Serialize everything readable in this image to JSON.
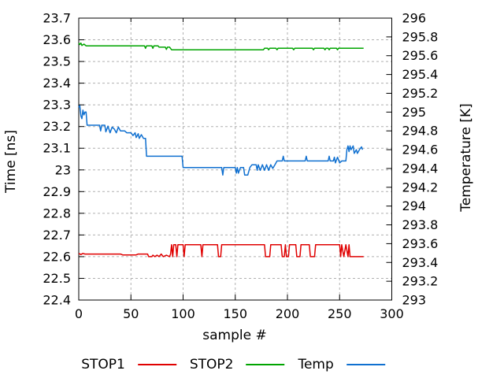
{
  "figure": {
    "background": "#ffffff",
    "border_color": "#000000",
    "grid_color": "#b0b0b0",
    "text_color": "#000000"
  },
  "chart_data": {
    "type": "line",
    "title": "",
    "grid": true,
    "legend_position": "bottom-center",
    "x_axis": {
      "label": "sample #",
      "min": 0,
      "max": 300,
      "tick_step": 50,
      "ticks": [
        "0",
        "50",
        "100",
        "150",
        "200",
        "250",
        "300"
      ]
    },
    "y_axis_left": {
      "label": "Time [ns]",
      "min": 22.4,
      "max": 23.7,
      "tick_step": 0.1,
      "ticks": [
        "23.7",
        "23.6",
        "23.5",
        "23.4",
        "23.3",
        "23.2",
        "23.1",
        "23",
        "22.9",
        "22.8",
        "22.7",
        "22.6",
        "22.5",
        "22.4"
      ]
    },
    "y_axis_right": {
      "label": "Temperature [K]",
      "min": 293,
      "max": 296,
      "tick_step": 0.2,
      "ticks": [
        "296",
        "295.8",
        "295.6",
        "295.4",
        "295.2",
        "295",
        "294.8",
        "294.6",
        "294.4",
        "294.2",
        "294",
        "293.8",
        "293.6",
        "293.4",
        "293.2",
        "293"
      ]
    },
    "series": [
      {
        "name": "STOP1",
        "color": "#e00000",
        "axis": "left",
        "points": [
          [
            0,
            22.615
          ],
          [
            2,
            22.61
          ],
          [
            4,
            22.615
          ],
          [
            6,
            22.612
          ],
          [
            40,
            22.612
          ],
          [
            42,
            22.608
          ],
          [
            55,
            22.608
          ],
          [
            57,
            22.612
          ],
          [
            66,
            22.612
          ],
          [
            67,
            22.6
          ],
          [
            70,
            22.6
          ],
          [
            71,
            22.607
          ],
          [
            73,
            22.6
          ],
          [
            75,
            22.607
          ],
          [
            77,
            22.6
          ],
          [
            79,
            22.612
          ],
          [
            81,
            22.6
          ],
          [
            84,
            22.607
          ],
          [
            87,
            22.6
          ],
          [
            88,
            22.612
          ],
          [
            89,
            22.655
          ],
          [
            90,
            22.6
          ],
          [
            91,
            22.655
          ],
          [
            93,
            22.655
          ],
          [
            94,
            22.6
          ],
          [
            95,
            22.655
          ],
          [
            100,
            22.655
          ],
          [
            101,
            22.6
          ],
          [
            102,
            22.655
          ],
          [
            117,
            22.655
          ],
          [
            118,
            22.6
          ],
          [
            119,
            22.655
          ],
          [
            133,
            22.655
          ],
          [
            134,
            22.6
          ],
          [
            136,
            22.6
          ],
          [
            137,
            22.655
          ],
          [
            178,
            22.655
          ],
          [
            179,
            22.6
          ],
          [
            183,
            22.6
          ],
          [
            184,
            22.655
          ],
          [
            194,
            22.655
          ],
          [
            195,
            22.6
          ],
          [
            197,
            22.6
          ],
          [
            198,
            22.655
          ],
          [
            199,
            22.6
          ],
          [
            201,
            22.6
          ],
          [
            202,
            22.655
          ],
          [
            208,
            22.655
          ],
          [
            209,
            22.6
          ],
          [
            212,
            22.6
          ],
          [
            213,
            22.655
          ],
          [
            221,
            22.655
          ],
          [
            222,
            22.6
          ],
          [
            226,
            22.6
          ],
          [
            227,
            22.655
          ],
          [
            250,
            22.655
          ],
          [
            251,
            22.6
          ],
          [
            252,
            22.655
          ],
          [
            254,
            22.6
          ],
          [
            256,
            22.655
          ],
          [
            258,
            22.6
          ],
          [
            259,
            22.655
          ],
          [
            260,
            22.6
          ],
          [
            273,
            22.6
          ]
        ]
      },
      {
        "name": "STOP2",
        "color": "#00a400",
        "axis": "left",
        "points": [
          [
            0,
            23.585
          ],
          [
            1,
            23.578
          ],
          [
            2,
            23.585
          ],
          [
            3,
            23.574
          ],
          [
            5,
            23.58
          ],
          [
            7,
            23.572
          ],
          [
            63,
            23.572
          ],
          [
            64,
            23.561
          ],
          [
            65,
            23.572
          ],
          [
            70,
            23.572
          ],
          [
            71,
            23.561
          ],
          [
            72,
            23.572
          ],
          [
            76,
            23.572
          ],
          [
            77,
            23.566
          ],
          [
            83,
            23.566
          ],
          [
            84,
            23.556
          ],
          [
            85,
            23.566
          ],
          [
            87,
            23.566
          ],
          [
            89,
            23.554
          ],
          [
            177,
            23.554
          ],
          [
            178,
            23.561
          ],
          [
            181,
            23.561
          ],
          [
            182,
            23.554
          ],
          [
            183,
            23.561
          ],
          [
            189,
            23.561
          ],
          [
            190,
            23.554
          ],
          [
            191,
            23.561
          ],
          [
            205,
            23.561
          ],
          [
            206,
            23.554
          ],
          [
            207,
            23.561
          ],
          [
            224,
            23.561
          ],
          [
            225,
            23.554
          ],
          [
            226,
            23.561
          ],
          [
            235,
            23.561
          ],
          [
            236,
            23.554
          ],
          [
            237,
            23.561
          ],
          [
            239,
            23.561
          ],
          [
            240,
            23.554
          ],
          [
            241,
            23.561
          ],
          [
            247,
            23.561
          ],
          [
            248,
            23.554
          ],
          [
            249,
            23.561
          ],
          [
            273,
            23.561
          ]
        ]
      },
      {
        "name": "Temp",
        "color": "#1070d0",
        "axis": "right",
        "points": [
          [
            0,
            295.05
          ],
          [
            1,
            295.07
          ],
          [
            2,
            294.96
          ],
          [
            3,
            294.93
          ],
          [
            4,
            295.02
          ],
          [
            5,
            294.97
          ],
          [
            6,
            295.0
          ],
          [
            7,
            295.0
          ],
          [
            8,
            294.86
          ],
          [
            20,
            294.86
          ],
          [
            21,
            294.8
          ],
          [
            22,
            294.86
          ],
          [
            25,
            294.86
          ],
          [
            26,
            294.79
          ],
          [
            28,
            294.85
          ],
          [
            30,
            294.78
          ],
          [
            32,
            294.84
          ],
          [
            34,
            294.82
          ],
          [
            36,
            294.78
          ],
          [
            38,
            294.84
          ],
          [
            40,
            294.8
          ],
          [
            44,
            294.8
          ],
          [
            46,
            294.78
          ],
          [
            50,
            294.78
          ],
          [
            52,
            294.75
          ],
          [
            54,
            294.78
          ],
          [
            55,
            294.73
          ],
          [
            57,
            294.77
          ],
          [
            58,
            294.72
          ],
          [
            60,
            294.76
          ],
          [
            62,
            294.72
          ],
          [
            64,
            294.72
          ],
          [
            65,
            294.53
          ],
          [
            99,
            294.53
          ],
          [
            100,
            294.41
          ],
          [
            137,
            294.41
          ],
          [
            138,
            294.33
          ],
          [
            139,
            294.41
          ],
          [
            150,
            294.41
          ],
          [
            151,
            294.35
          ],
          [
            152,
            294.41
          ],
          [
            153,
            294.35
          ],
          [
            155,
            294.41
          ],
          [
            158,
            294.41
          ],
          [
            159,
            294.33
          ],
          [
            162,
            294.33
          ],
          [
            164,
            294.41
          ],
          [
            166,
            294.44
          ],
          [
            170,
            294.44
          ],
          [
            171,
            294.38
          ],
          [
            172,
            294.44
          ],
          [
            174,
            294.38
          ],
          [
            176,
            294.44
          ],
          [
            178,
            294.38
          ],
          [
            180,
            294.44
          ],
          [
            182,
            294.38
          ],
          [
            184,
            294.44
          ],
          [
            186,
            294.4
          ],
          [
            188,
            294.44
          ],
          [
            190,
            294.48
          ],
          [
            195,
            294.48
          ],
          [
            196,
            294.53
          ],
          [
            197,
            294.48
          ],
          [
            217,
            294.48
          ],
          [
            218,
            294.53
          ],
          [
            219,
            294.48
          ],
          [
            239,
            294.48
          ],
          [
            240,
            294.53
          ],
          [
            241,
            294.48
          ],
          [
            244,
            294.48
          ],
          [
            245,
            294.52
          ],
          [
            246,
            294.46
          ],
          [
            248,
            294.52
          ],
          [
            250,
            294.46
          ],
          [
            252,
            294.48
          ],
          [
            256,
            294.48
          ],
          [
            257,
            294.6
          ],
          [
            258,
            294.64
          ],
          [
            259,
            294.58
          ],
          [
            260,
            294.64
          ],
          [
            261,
            294.6
          ],
          [
            263,
            294.64
          ],
          [
            264,
            294.56
          ],
          [
            266,
            294.6
          ],
          [
            267,
            294.56
          ],
          [
            269,
            294.6
          ],
          [
            271,
            294.63
          ],
          [
            272,
            294.6
          ]
        ]
      }
    ]
  }
}
